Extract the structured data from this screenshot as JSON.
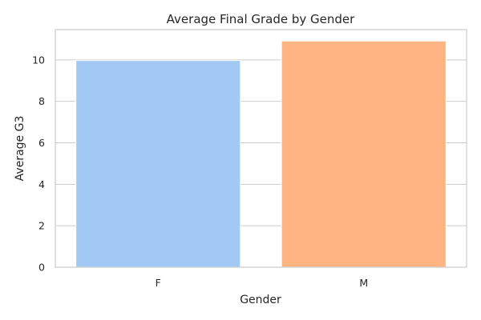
{
  "chart_data": {
    "type": "bar",
    "title": "Average Final Grade by Gender",
    "xlabel": "Gender",
    "ylabel": "Average G3",
    "categories": [
      "F",
      "M"
    ],
    "values": [
      9.97,
      10.91
    ],
    "colors": [
      "#a1c9f4",
      "#ffb482"
    ],
    "ylim": [
      0,
      11.46
    ],
    "yticks": [
      0,
      2,
      4,
      6,
      8,
      10
    ],
    "grid": "y"
  }
}
